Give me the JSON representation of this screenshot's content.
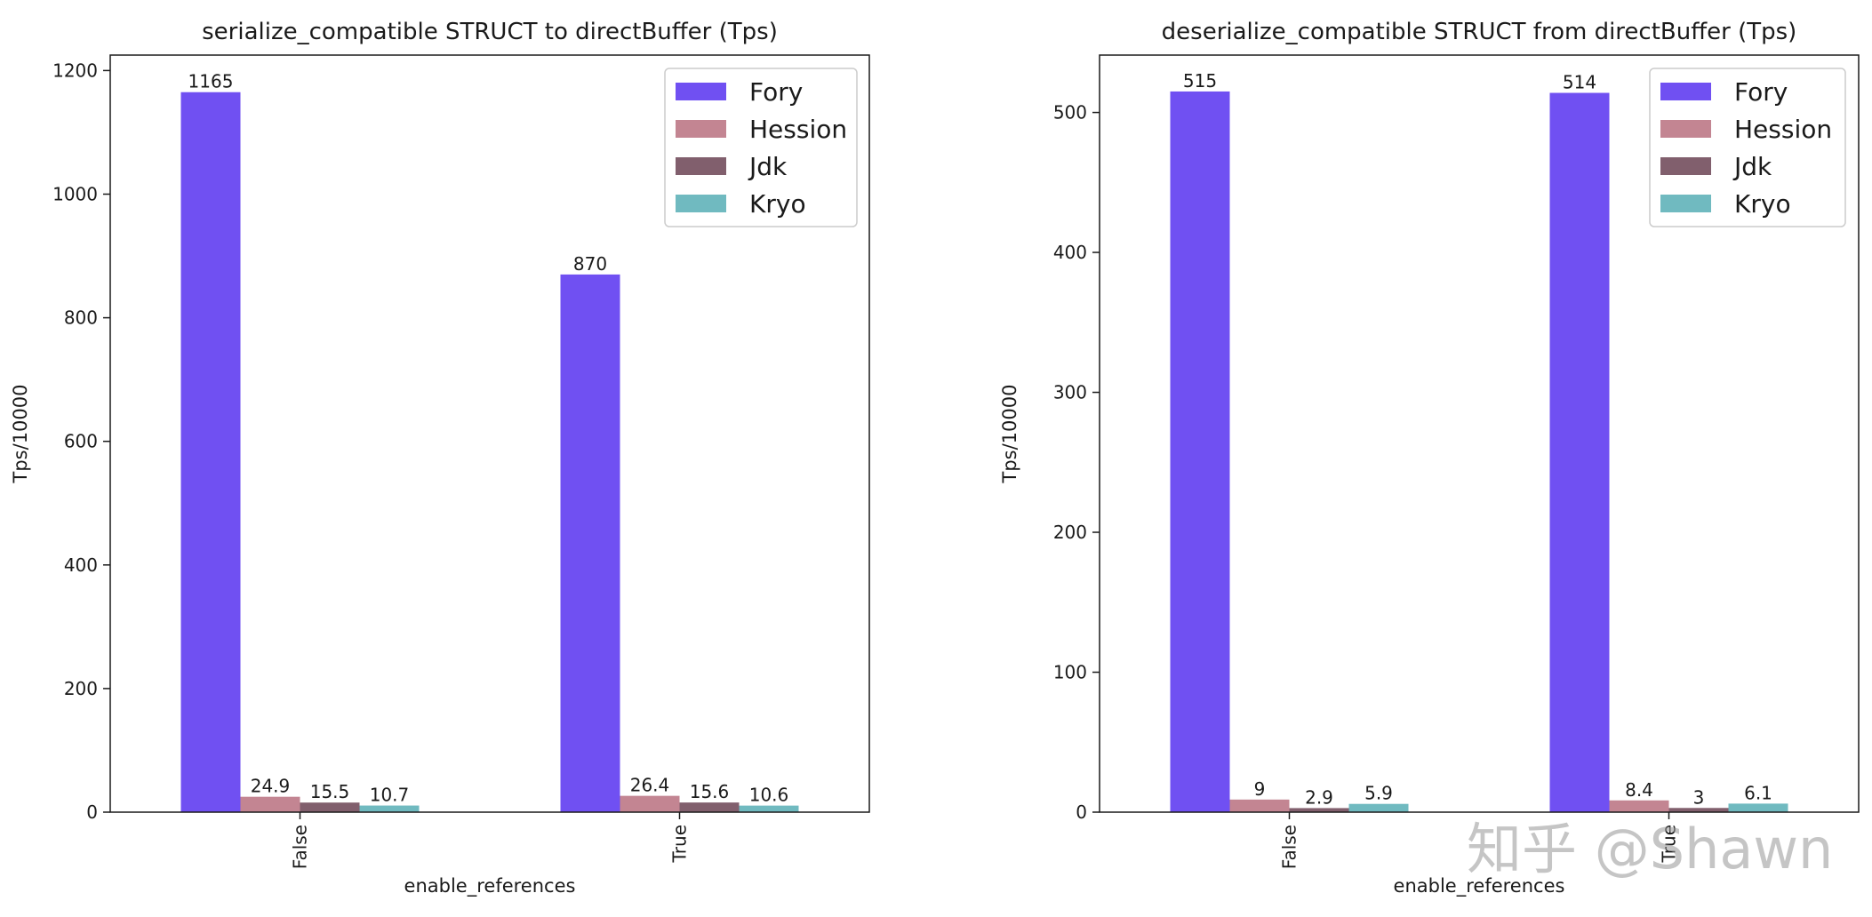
{
  "chart_data": [
    {
      "type": "bar",
      "title": "serialize_compatible STRUCT to directBuffer (Tps)",
      "xlabel": "enable_references",
      "ylabel": "Tps/10000",
      "categories": [
        "False",
        "True"
      ],
      "ylim": [
        0,
        1225
      ],
      "yticks": [
        0,
        200,
        400,
        600,
        800,
        1000,
        1200
      ],
      "grid": false,
      "legend_position": "top-right",
      "series": [
        {
          "name": "Fory",
          "color": "#7050f2",
          "values": [
            1165,
            870
          ],
          "labels": [
            "1165",
            "870"
          ]
        },
        {
          "name": "Hession",
          "color": "#c38592",
          "values": [
            24.9,
            26.4
          ],
          "labels": [
            "24.9",
            "26.4"
          ]
        },
        {
          "name": "Jdk",
          "color": "#815f6d",
          "values": [
            15.5,
            15.6
          ],
          "labels": [
            "15.5",
            "15.6"
          ]
        },
        {
          "name": "Kryo",
          "color": "#70bac0",
          "values": [
            10.7,
            10.6
          ],
          "labels": [
            "10.7",
            "10.6"
          ]
        }
      ]
    },
    {
      "type": "bar",
      "title": "deserialize_compatible STRUCT from directBuffer (Tps)",
      "xlabel": "enable_references",
      "ylabel": "Tps/10000",
      "categories": [
        "False",
        "True"
      ],
      "ylim": [
        0,
        541
      ],
      "yticks": [
        0,
        100,
        200,
        300,
        400,
        500
      ],
      "grid": false,
      "legend_position": "top-right",
      "series": [
        {
          "name": "Fory",
          "color": "#7050f2",
          "values": [
            515,
            514
          ],
          "labels": [
            "515",
            "514"
          ]
        },
        {
          "name": "Hession",
          "color": "#c38592",
          "values": [
            9,
            8.4
          ],
          "labels": [
            "9",
            "8.4"
          ]
        },
        {
          "name": "Jdk",
          "color": "#815f6d",
          "values": [
            2.9,
            3
          ],
          "labels": [
            "2.9",
            "3"
          ]
        },
        {
          "name": "Kryo",
          "color": "#70bac0",
          "values": [
            5.9,
            6.1
          ],
          "labels": [
            "5.9",
            "6.1"
          ]
        }
      ]
    }
  ],
  "watermark": "知乎 @Shawn"
}
